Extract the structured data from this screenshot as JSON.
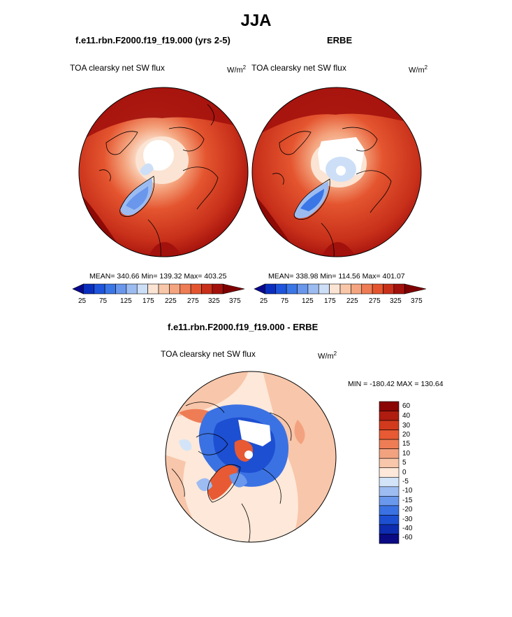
{
  "page": {
    "season": "JJA",
    "model_title": "f.e11.rbn.F2000.f19_f19.000 (yrs 2-5)",
    "obs_title": "ERBE",
    "diff_title": "f.e11.rbn.F2000.f19_f19.000 - ERBE"
  },
  "panels": {
    "model": {
      "variable": "TOA clearsky net SW flux",
      "units_base": "W/m",
      "units_exp": "2",
      "stats": "MEAN= 340.66  Min= 139.32  Max= 403.25"
    },
    "obs": {
      "variable": "TOA clearsky net SW flux",
      "units_base": "W/m",
      "units_exp": "2",
      "stats": "MEAN= 338.98  Min= 114.56  Max= 401.07"
    },
    "diff": {
      "variable": "TOA clearsky net SW flux",
      "units_base": "W/m",
      "units_exp": "2",
      "stats": "MIN = -180.42 MAX = 130.64"
    }
  },
  "colors": {
    "abs_scale": [
      "#08088f",
      "#0a2fbf",
      "#1f55dc",
      "#3b76e6",
      "#6a97ec",
      "#9cbcf1",
      "#cddff7",
      "#fbe4d3",
      "#f8c7a9",
      "#f4a47e",
      "#ee7c55",
      "#e4552f",
      "#c8301a",
      "#a3110c",
      "#7e0000"
    ],
    "diff_scale": [
      "#0a0a84",
      "#0d2cb0",
      "#1d4fd2",
      "#3b72e3",
      "#6a98ec",
      "#9dbcf2",
      "#d3e4f8",
      "#fde8d9",
      "#f8c6aa",
      "#f3a27f",
      "#ee7d55",
      "#e75a33",
      "#d23a1d",
      "#b01c10",
      "#8b0505"
    ]
  },
  "chart_data": [
    {
      "type": "heatmap",
      "title": "f.e11.rbn.F2000.f19_f19.000 (yrs 2-5)",
      "subtitle": "TOA clearsky net SW flux",
      "units": "W/m2",
      "projection": "north polar stereographic",
      "levels": [
        25,
        50,
        75,
        100,
        125,
        150,
        175,
        200,
        225,
        250,
        275,
        300,
        325,
        350,
        375
      ],
      "colorbar_labels": [
        "25",
        "75",
        "125",
        "175",
        "225",
        "275",
        "325",
        "375"
      ],
      "stats": {
        "mean": 340.66,
        "min": 139.32,
        "max": 403.25
      }
    },
    {
      "type": "heatmap",
      "title": "ERBE",
      "subtitle": "TOA clearsky net SW flux",
      "units": "W/m2",
      "projection": "north polar stereographic",
      "levels": [
        25,
        50,
        75,
        100,
        125,
        150,
        175,
        200,
        225,
        250,
        275,
        300,
        325,
        350,
        375
      ],
      "colorbar_labels": [
        "25",
        "75",
        "125",
        "175",
        "225",
        "275",
        "325",
        "375"
      ],
      "stats": {
        "mean": 338.98,
        "min": 114.56,
        "max": 401.07
      }
    },
    {
      "type": "heatmap",
      "title": "f.e11.rbn.F2000.f19_f19.000 - ERBE",
      "subtitle": "TOA clearsky net SW flux",
      "units": "W/m2",
      "projection": "north polar stereographic",
      "levels": [
        -60,
        -40,
        -30,
        -20,
        -15,
        -10,
        -5,
        0,
        5,
        10,
        15,
        20,
        30,
        40,
        60
      ],
      "colorbar_labels": [
        "60",
        "40",
        "30",
        "20",
        "15",
        "10",
        "5",
        "0",
        "-5",
        "-10",
        "-15",
        "-20",
        "-30",
        "-40",
        "-60"
      ],
      "stats": {
        "min": -180.42,
        "max": 130.64
      }
    }
  ]
}
